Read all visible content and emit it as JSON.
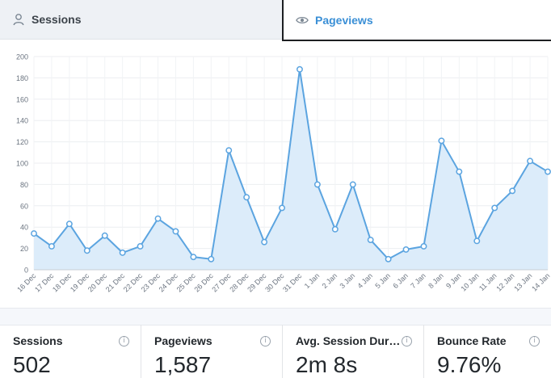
{
  "tabs": {
    "sessions_label": "Sessions",
    "pageviews_label": "Pageviews",
    "active": "Pageviews"
  },
  "chart_data": {
    "type": "area",
    "categories": [
      "16 Dec",
      "17 Dec",
      "18 Dec",
      "19 Dec",
      "20 Dec",
      "21 Dec",
      "22 Dec",
      "23 Dec",
      "24 Dec",
      "25 Dec",
      "26 Dec",
      "27 Dec",
      "28 Dec",
      "29 Dec",
      "30 Dec",
      "31 Dec",
      "1 Jan",
      "2 Jan",
      "3 Jan",
      "4 Jan",
      "5 Jan",
      "6 Jan",
      "7 Jan",
      "8 Jan",
      "9 Jan",
      "10 Jan",
      "11 Jan",
      "12 Jan",
      "13 Jan",
      "14 Jan"
    ],
    "values": [
      34,
      22,
      43,
      18,
      32,
      16,
      22,
      48,
      36,
      12,
      10,
      112,
      68,
      26,
      58,
      188,
      80,
      38,
      80,
      28,
      10,
      19,
      22,
      121,
      92,
      27,
      58,
      74,
      102,
      92
    ],
    "yticks": [
      "0",
      "20",
      "40",
      "60",
      "80",
      "100",
      "120",
      "140",
      "160",
      "180",
      "200"
    ],
    "ylim": [
      0,
      200
    ],
    "grid": true,
    "line_color": "#5ba4e0",
    "fill_color": "#dcecfa"
  },
  "stats": [
    {
      "label": "Sessions",
      "value": "502"
    },
    {
      "label": "Pageviews",
      "value": "1,587"
    },
    {
      "label": "Avg. Session Duration",
      "value": "2m 8s"
    },
    {
      "label": "Bounce Rate",
      "value": "9.76%"
    }
  ],
  "icons": {
    "info_glyph": "i"
  }
}
